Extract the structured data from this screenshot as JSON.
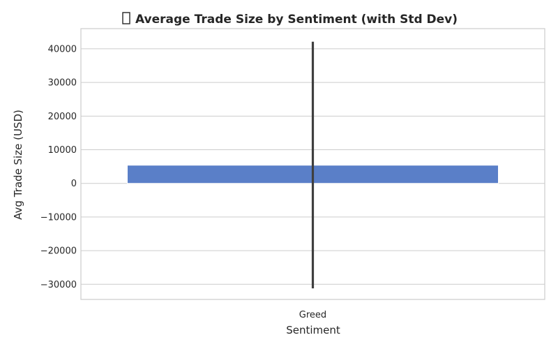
{
  "chart_data": {
    "type": "bar",
    "title": "Average Trade Size by Sentiment (with Std Dev)",
    "title_icon": "missing-glyph-icon",
    "xlabel": "Sentiment",
    "ylabel": "Avg Trade Size (USD)",
    "categories": [
      "Greed"
    ],
    "values": [
      5400
    ],
    "error_low": [
      -31200
    ],
    "error_high": [
      42100
    ],
    "ylim": [
      -34500,
      46000
    ],
    "yticks": [
      -30000,
      -20000,
      -10000,
      0,
      10000,
      20000,
      30000,
      40000
    ],
    "ytick_labels": [
      "−30000",
      "−20000",
      "−10000",
      "0",
      "10000",
      "20000",
      "30000",
      "40000"
    ],
    "grid": true,
    "colors": {
      "bar": "#5a7fc8",
      "error_bar": "#3f3f3f",
      "grid": "#cccccc",
      "text": "#262626"
    }
  }
}
